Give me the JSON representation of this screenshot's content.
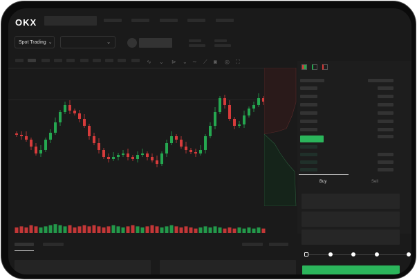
{
  "header": {
    "logo": "OKX"
  },
  "toolbar": {
    "market_select": "Spot Trading",
    "chevron": "⌄"
  },
  "orderbook": {
    "view_icons": [
      "both-sides-icon",
      "bids-icon",
      "asks-icon"
    ]
  },
  "trade_panel": {
    "tabs": [
      "Buy",
      "Sell"
    ],
    "active_tab": "Buy"
  },
  "colors": {
    "up": "#25a750",
    "down": "#d63b3b",
    "accent": "#2bb55b",
    "background": "#1a1a1a"
  },
  "chart_data": {
    "type": "candlestick",
    "closes": [
      117,
      115,
      110,
      100,
      90,
      95,
      110,
      120,
      135,
      150,
      160,
      152,
      148,
      140,
      130,
      115,
      105,
      95,
      85,
      82,
      85,
      88,
      90,
      85,
      82,
      88,
      90,
      85,
      80,
      75,
      90,
      105,
      115,
      110,
      100,
      95,
      92,
      90,
      95,
      115,
      130,
      150,
      170,
      160,
      140,
      130,
      132,
      145,
      155,
      160,
      170,
      165
    ],
    "volumes": [
      5,
      6,
      5,
      7,
      6,
      5,
      6,
      7,
      8,
      7,
      6,
      7,
      5,
      6,
      7,
      6,
      7,
      6,
      5,
      6,
      7,
      6,
      5,
      6,
      7,
      6,
      5,
      6,
      7,
      6,
      5,
      6,
      7,
      6,
      5,
      6,
      5,
      4,
      5,
      6,
      5,
      6,
      5,
      4,
      5,
      4,
      5,
      4,
      5,
      4,
      5,
      4
    ]
  }
}
